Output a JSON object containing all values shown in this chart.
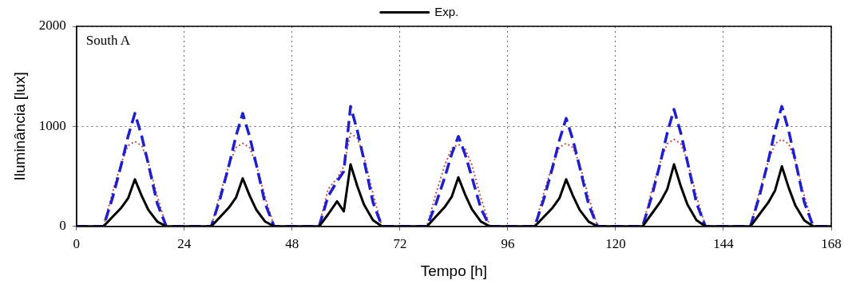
{
  "chart_data": {
    "type": "line",
    "xlabel": "Tempo [h]",
    "ylabel": "Iluminância [lux]",
    "annotations": [
      "South A"
    ],
    "x": [
      0,
      6,
      8,
      10,
      11.5,
      13,
      14.5,
      16,
      18,
      20,
      24,
      30,
      32,
      34,
      35.5,
      37,
      38.5,
      40,
      42,
      44,
      48,
      54,
      56,
      58,
      59.5,
      61,
      62.5,
      64,
      66,
      68,
      72,
      78,
      80,
      82,
      83.5,
      85,
      86.5,
      88,
      90,
      92,
      96,
      102,
      104,
      106,
      107.5,
      109,
      110.5,
      112,
      114,
      116,
      120,
      126,
      128,
      130,
      131.5,
      133,
      134.5,
      136,
      138,
      140,
      144,
      150,
      152,
      154,
      155.5,
      157,
      158.5,
      160,
      162,
      164,
      168
    ],
    "series": [
      {
        "name": "Exp.",
        "color": "#000000",
        "line_style": "solid",
        "values": [
          0,
          0,
          94,
          188,
          282,
          470,
          306,
          165,
          47,
          0,
          0,
          0,
          96,
          192,
          288,
          480,
          312,
          168,
          48,
          0,
          0,
          0,
          120,
          250,
          150,
          620,
          403,
          217,
          62,
          0,
          0,
          0,
          98,
          196,
          294,
          490,
          319,
          172,
          49,
          0,
          0,
          0,
          94,
          188,
          282,
          470,
          306,
          165,
          47,
          0,
          0,
          0,
          124,
          248,
          372,
          620,
          403,
          217,
          62,
          0,
          0,
          0,
          120,
          240,
          360,
          600,
          390,
          210,
          60,
          0,
          0
        ]
      },
      {
        "color": "#1f1fcc",
        "line_style": "dashed",
        "values": [
          0,
          0,
          283,
          622,
          904,
          1130,
          904,
          622,
          226,
          0,
          0,
          0,
          283,
          622,
          904,
          1130,
          904,
          622,
          226,
          0,
          0,
          0,
          300,
          450,
          550,
          1200,
          960,
          660,
          240,
          0,
          0,
          0,
          225,
          495,
          720,
          900,
          720,
          495,
          180,
          0,
          0,
          0,
          270,
          594,
          864,
          1080,
          864,
          594,
          216,
          0,
          0,
          0,
          293,
          644,
          936,
          1170,
          936,
          644,
          234,
          0,
          0,
          0,
          300,
          660,
          960,
          1200,
          960,
          660,
          240,
          0,
          0
        ]
      },
      {
        "color": "#c0504d",
        "line_style": "dotted",
        "values": [
          0,
          0,
          340,
          638,
          808,
          850,
          808,
          638,
          298,
          0,
          0,
          0,
          332,
          623,
          789,
          830,
          789,
          623,
          291,
          0,
          0,
          0,
          372,
          480,
          600,
          930,
          884,
          698,
          326,
          0,
          0,
          0,
          328,
          615,
          779,
          820,
          779,
          615,
          287,
          0,
          0,
          0,
          332,
          623,
          789,
          830,
          789,
          623,
          291,
          0,
          0,
          0,
          348,
          653,
          827,
          870,
          827,
          653,
          305,
          0,
          0,
          0,
          348,
          653,
          827,
          870,
          827,
          653,
          305,
          0,
          0
        ]
      }
    ],
    "xlim": [
      0,
      168
    ],
    "xticks": [
      0,
      24,
      48,
      72,
      96,
      120,
      144,
      168
    ],
    "ylim": [
      0,
      2000
    ],
    "yticks": [
      0,
      1000,
      2000
    ],
    "grid": true,
    "legend": "top",
    "marker": "none"
  }
}
